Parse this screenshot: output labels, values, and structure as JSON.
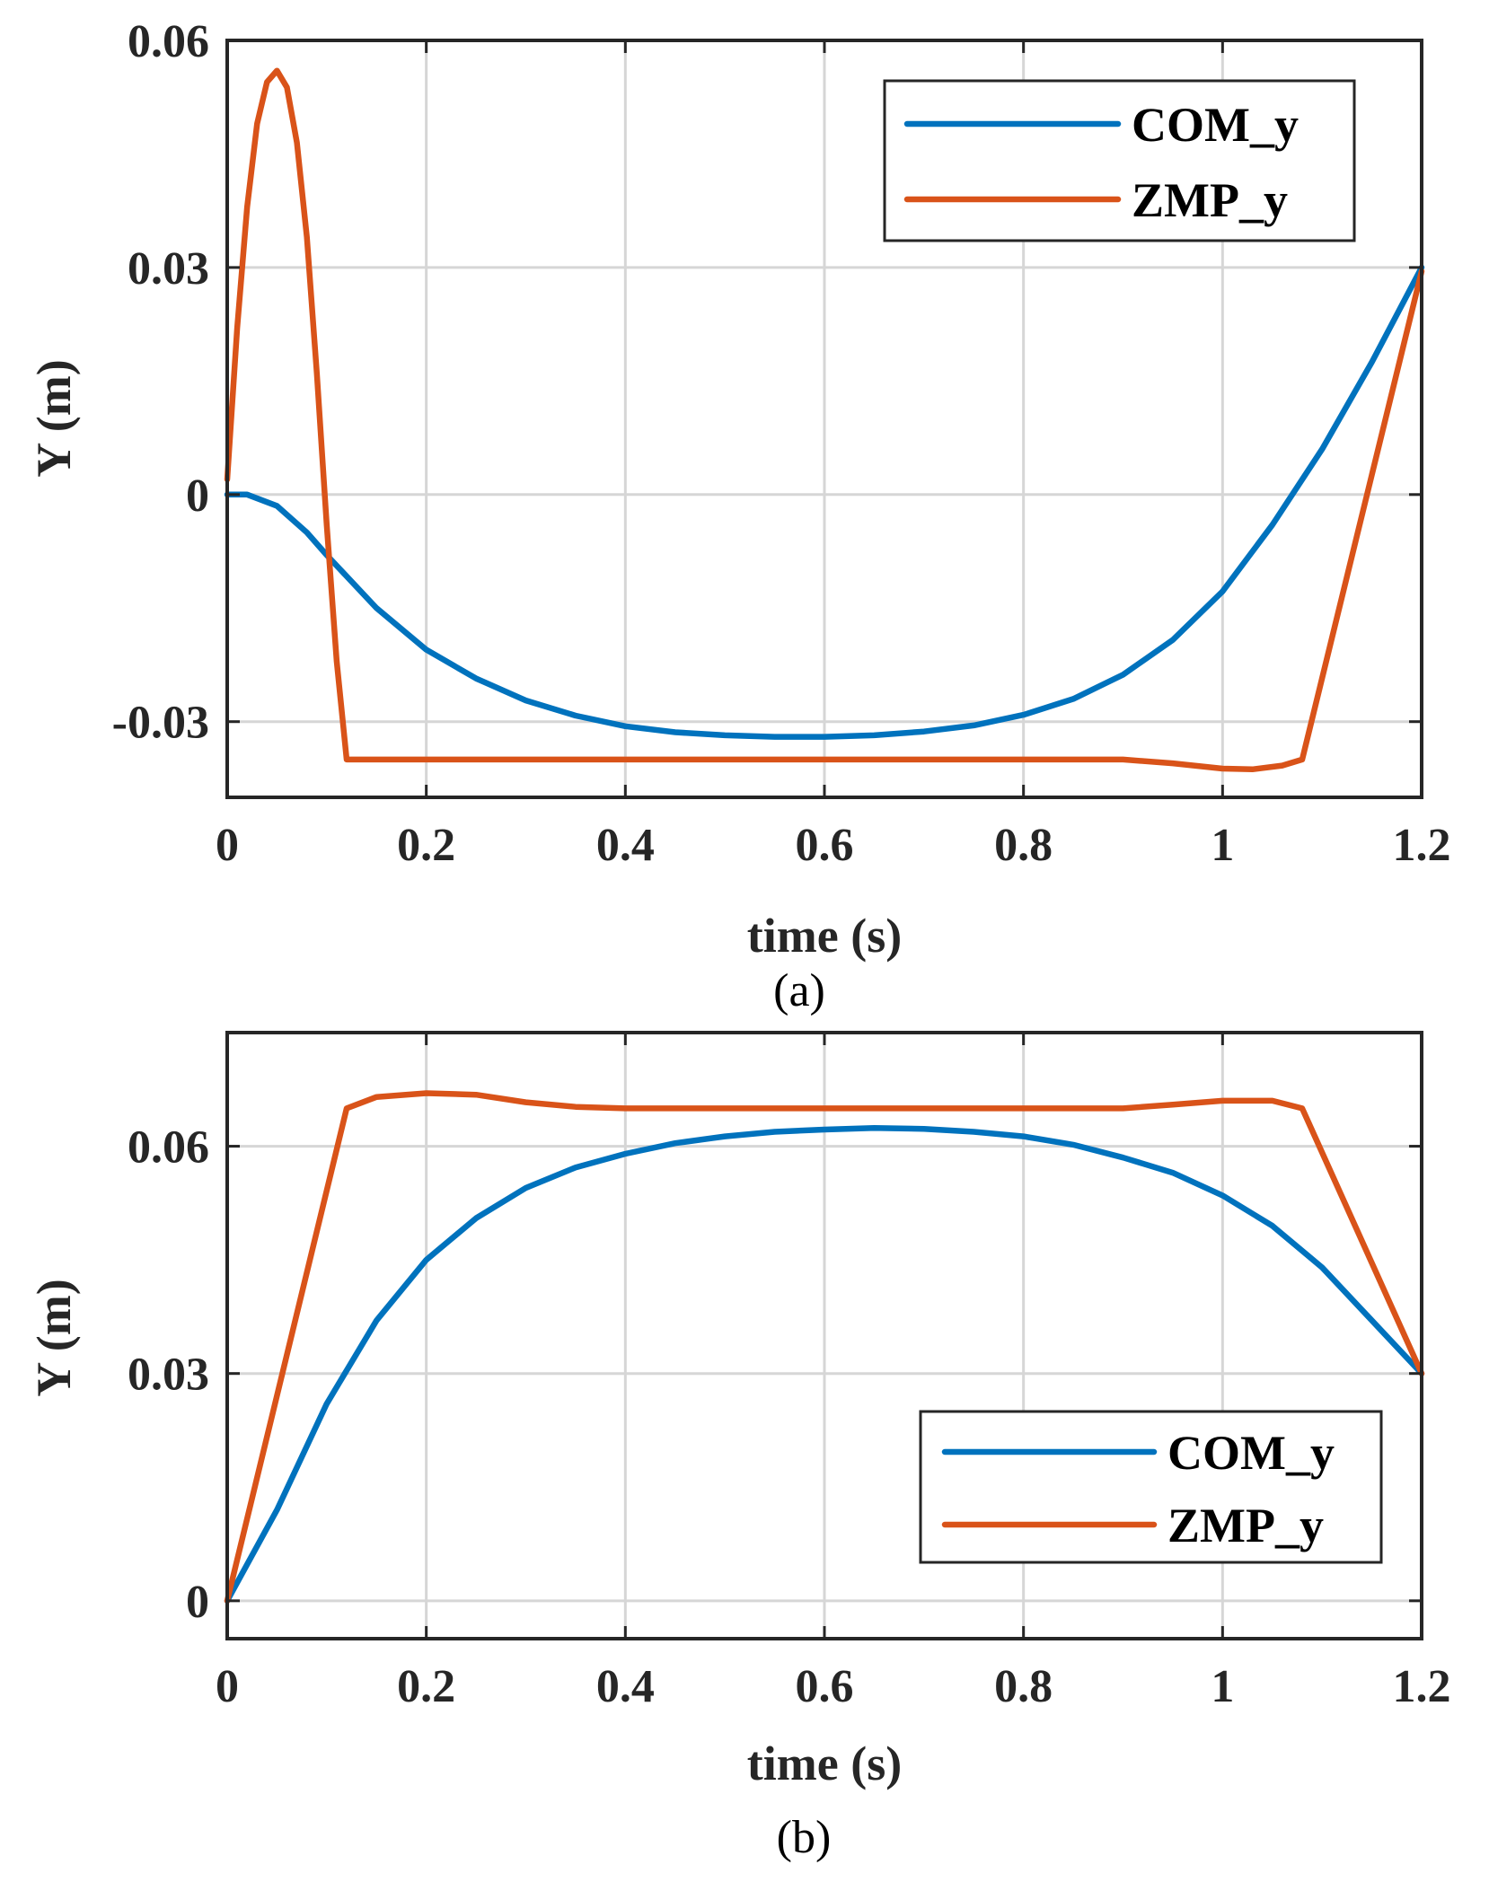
{
  "chart_data": [
    {
      "type": "line",
      "caption": "(a)",
      "xlabel": "time (s)",
      "ylabel": "Y (m)",
      "xlim": [
        0,
        1.2
      ],
      "ylim": [
        -0.04,
        0.06
      ],
      "xticks": [
        0,
        0.2,
        0.4,
        0.6,
        0.8,
        1,
        1.2
      ],
      "xtick_labels": [
        "0",
        "0.2",
        "0.4",
        "0.6",
        "0.8",
        "1",
        "1.2"
      ],
      "yticks": [
        -0.03,
        0,
        0.03,
        0.06
      ],
      "ytick_labels": [
        "-0.03",
        "0",
        "0.03",
        "0.06"
      ],
      "grid": true,
      "legend_position": "top-right",
      "series": [
        {
          "name": "COM_y",
          "color": "#0072BD",
          "x": [
            0,
            0.02,
            0.05,
            0.08,
            0.1,
            0.15,
            0.2,
            0.25,
            0.3,
            0.35,
            0.4,
            0.45,
            0.5,
            0.55,
            0.6,
            0.65,
            0.7,
            0.75,
            0.8,
            0.85,
            0.9,
            0.95,
            1.0,
            1.05,
            1.1,
            1.15,
            1.2
          ],
          "y": [
            0,
            0,
            -0.0015,
            -0.005,
            -0.008,
            -0.015,
            -0.0205,
            -0.0243,
            -0.0272,
            -0.0292,
            -0.0306,
            -0.0314,
            -0.0318,
            -0.032,
            -0.032,
            -0.0318,
            -0.0313,
            -0.0305,
            -0.0291,
            -0.027,
            -0.0238,
            -0.0192,
            -0.0128,
            -0.004,
            0.006,
            0.0175,
            0.03
          ]
        },
        {
          "name": "ZMP_y",
          "color": "#D95319",
          "x": [
            0,
            0.01,
            0.02,
            0.03,
            0.04,
            0.05,
            0.06,
            0.07,
            0.08,
            0.09,
            0.1,
            0.11,
            0.12,
            0.3,
            0.6,
            0.9,
            0.95,
            1.0,
            1.03,
            1.06,
            1.08,
            1.2
          ],
          "y": [
            0.002,
            0.022,
            0.038,
            0.049,
            0.0545,
            0.056,
            0.0538,
            0.0465,
            0.034,
            0.016,
            -0.004,
            -0.022,
            -0.035,
            -0.035,
            -0.035,
            -0.035,
            -0.0355,
            -0.0362,
            -0.0363,
            -0.0358,
            -0.035,
            0.0295
          ]
        }
      ]
    },
    {
      "type": "line",
      "caption": "(b)",
      "xlabel": "time (s)",
      "ylabel": "Y (m)",
      "xlim": [
        0,
        1.2
      ],
      "ylim": [
        -0.005,
        0.075
      ],
      "xticks": [
        0,
        0.2,
        0.4,
        0.6,
        0.8,
        1,
        1.2
      ],
      "xtick_labels": [
        "0",
        "0.2",
        "0.4",
        "0.6",
        "0.8",
        "1",
        "1.2"
      ],
      "yticks": [
        0,
        0.03,
        0.06
      ],
      "ytick_labels": [
        "0",
        "0.03",
        "0.06"
      ],
      "grid": true,
      "legend_position": "bottom-right",
      "series": [
        {
          "name": "COM_y",
          "color": "#0072BD",
          "x": [
            0,
            0.05,
            0.1,
            0.15,
            0.2,
            0.25,
            0.3,
            0.35,
            0.4,
            0.45,
            0.5,
            0.55,
            0.6,
            0.65,
            0.7,
            0.75,
            0.8,
            0.85,
            0.9,
            0.95,
            1.0,
            1.05,
            1.1,
            1.15,
            1.2
          ],
          "y": [
            0,
            0.012,
            0.026,
            0.037,
            0.045,
            0.0505,
            0.0545,
            0.0572,
            0.059,
            0.0604,
            0.0613,
            0.0619,
            0.0622,
            0.0624,
            0.0623,
            0.0619,
            0.0613,
            0.0602,
            0.0585,
            0.0565,
            0.0535,
            0.0495,
            0.044,
            0.037,
            0.03
          ]
        },
        {
          "name": "ZMP_y",
          "color": "#D95319",
          "x": [
            0,
            0.12,
            0.15,
            0.2,
            0.25,
            0.3,
            0.35,
            0.4,
            0.6,
            0.8,
            0.9,
            0.95,
            1.0,
            1.05,
            1.08,
            1.2
          ],
          "y": [
            0,
            0.065,
            0.0665,
            0.067,
            0.0668,
            0.0658,
            0.0652,
            0.065,
            0.065,
            0.065,
            0.065,
            0.0655,
            0.066,
            0.066,
            0.065,
            0.03
          ]
        }
      ]
    }
  ]
}
